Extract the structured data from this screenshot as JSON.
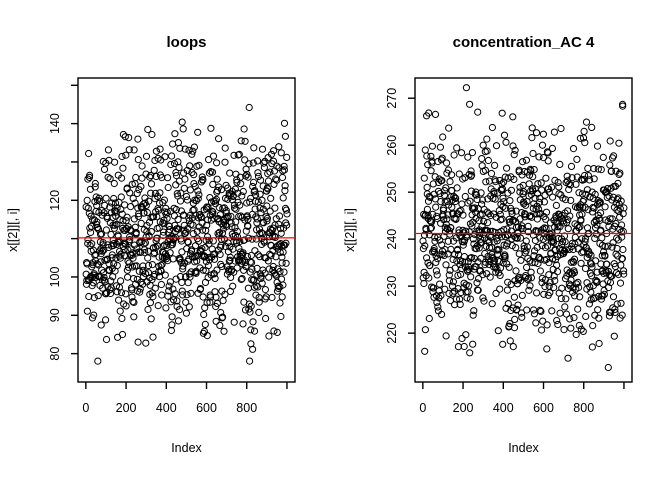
{
  "page": {
    "background": "#ffffff",
    "foreground": "#000000"
  },
  "chart_data": [
    {
      "type": "scatter",
      "panel": "left",
      "title": "loops",
      "xlabel": "Index",
      "ylabel": "x[[2]][, i]",
      "x_ticks": [
        {
          "value": 0,
          "label": "0"
        },
        {
          "value": 200,
          "label": "200"
        },
        {
          "value": 400,
          "label": "400"
        },
        {
          "value": 600,
          "label": "600"
        },
        {
          "value": 800,
          "label": "800"
        },
        {
          "value": 1000,
          "label": ""
        }
      ],
      "y_ticks": [
        {
          "value": 150,
          "label": ""
        },
        {
          "value": 140,
          "label": "140"
        },
        {
          "value": 130,
          "label": ""
        },
        {
          "value": 120,
          "label": "120"
        },
        {
          "value": 110,
          "label": ""
        },
        {
          "value": 100,
          "label": "100"
        },
        {
          "value": 90,
          "label": "90"
        },
        {
          "value": 80,
          "label": "80"
        }
      ],
      "xlim": [
        -39,
        1040
      ],
      "ylim": [
        72.6,
        151.9
      ],
      "grid": false,
      "legend": null,
      "points": {
        "n": 1000,
        "x_start": 1,
        "x_end": 1000,
        "y_mean": 110.5,
        "y_sd": 11.5,
        "y_min": 73.5,
        "y_max": 151,
        "style": "open-circle",
        "color": "#000000",
        "render_seed": 1337
      },
      "mean_line": {
        "value": 110.2,
        "color": "#ff0000"
      }
    },
    {
      "type": "scatter",
      "panel": "right",
      "title": "concentration_AC 4",
      "xlabel": "Index",
      "ylabel": "x[[2]][, i]",
      "x_ticks": [
        {
          "value": 0,
          "label": "0"
        },
        {
          "value": 200,
          "label": "200"
        },
        {
          "value": 400,
          "label": "400"
        },
        {
          "value": 600,
          "label": "600"
        },
        {
          "value": 800,
          "label": "800"
        },
        {
          "value": 1000,
          "label": ""
        }
      ],
      "y_ticks": [
        {
          "value": 270,
          "label": "270"
        },
        {
          "value": 260,
          "label": "260"
        },
        {
          "value": 250,
          "label": "250"
        },
        {
          "value": 240,
          "label": "240"
        },
        {
          "value": 230,
          "label": "230"
        },
        {
          "value": 220,
          "label": "220"
        }
      ],
      "xlim": [
        -39,
        1040
      ],
      "ylim": [
        209.6,
        274.3
      ],
      "grid": false,
      "legend": null,
      "points": {
        "n": 1000,
        "x_start": 1,
        "x_end": 1000,
        "y_mean": 241.0,
        "y_sd": 10.5,
        "y_min": 212,
        "y_max": 272.5,
        "style": "open-circle",
        "color": "#000000",
        "render_seed": 7331
      },
      "mean_line": {
        "value": 241.2,
        "color": "#ff0000"
      }
    }
  ]
}
